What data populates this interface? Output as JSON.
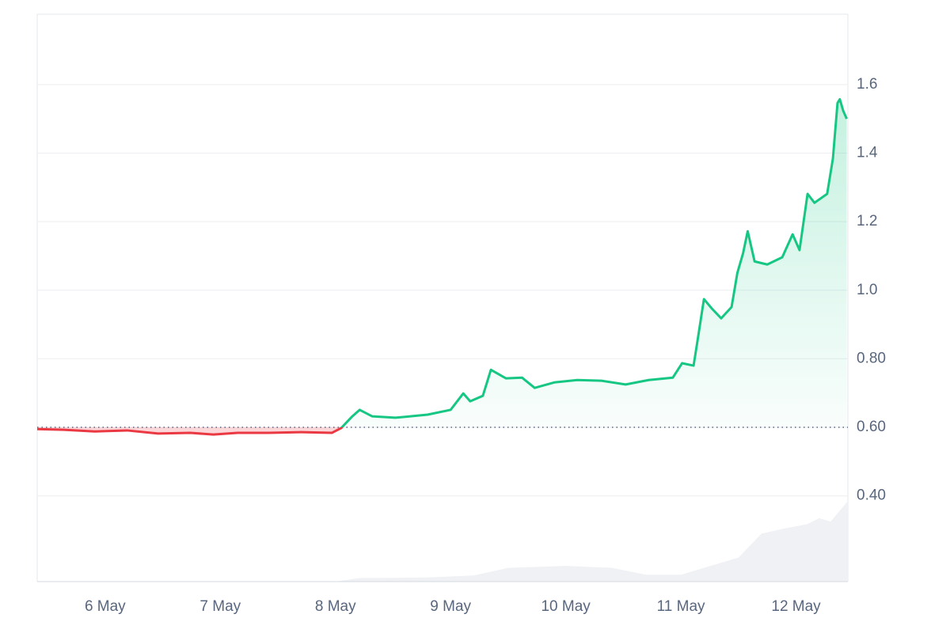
{
  "chart_data": {
    "type": "line",
    "x": [
      5.41,
      5.64,
      5.91,
      6.19,
      6.46,
      6.74,
      6.94,
      7.15,
      7.42,
      7.7,
      7.97,
      8.05,
      8.14,
      8.21,
      8.32,
      8.52,
      8.8,
      9.0,
      9.11,
      9.17,
      9.28,
      9.35,
      9.48,
      9.62,
      9.73,
      9.9,
      10.1,
      10.31,
      10.52,
      10.72,
      10.93,
      11.01,
      11.11,
      11.15,
      11.2,
      11.27,
      11.35,
      11.44,
      11.49,
      11.54,
      11.58,
      11.64,
      11.75,
      11.88,
      11.97,
      12.03,
      12.1,
      12.16,
      12.27,
      12.32,
      12.36,
      12.38,
      12.41,
      12.44
    ],
    "series": [
      {
        "color": "#16c784",
        "color_below": "#ea3943",
        "values": [
          0.595,
          0.593,
          0.588,
          0.591,
          0.582,
          0.584,
          0.579,
          0.584,
          0.584,
          0.586,
          0.584,
          0.598,
          0.63,
          0.651,
          0.632,
          0.628,
          0.637,
          0.651,
          0.699,
          0.676,
          0.692,
          0.768,
          0.743,
          0.745,
          0.715,
          0.731,
          0.738,
          0.736,
          0.725,
          0.738,
          0.745,
          0.787,
          0.78,
          0.865,
          0.974,
          0.946,
          0.918,
          0.951,
          1.05,
          1.108,
          1.172,
          1.084,
          1.075,
          1.096,
          1.163,
          1.117,
          1.281,
          1.255,
          1.281,
          1.384,
          1.546,
          1.557,
          1.523,
          1.5
        ]
      }
    ],
    "baseline": 0.6,
    "volume": {
      "color": "#eff1f4",
      "x": [
        5.41,
        7.0,
        8.0,
        8.2,
        8.8,
        9.2,
        9.5,
        10.0,
        10.4,
        10.7,
        11.0,
        11.2,
        11.5,
        11.7,
        11.9,
        12.1,
        12.2,
        12.3,
        12.45
      ],
      "values": [
        0.15,
        0.15,
        0.15,
        0.16,
        0.162,
        0.168,
        0.19,
        0.196,
        0.19,
        0.17,
        0.17,
        0.19,
        0.22,
        0.29,
        0.305,
        0.318,
        0.335,
        0.325,
        0.385
      ]
    },
    "xlim": [
      5.41,
      12.45
    ],
    "xticks": [
      {
        "value": 6,
        "label": "6 May"
      },
      {
        "value": 7,
        "label": "7 May"
      },
      {
        "value": 8,
        "label": "8 May"
      },
      {
        "value": 9,
        "label": "9 May"
      },
      {
        "value": 10,
        "label": "10 May"
      },
      {
        "value": 11,
        "label": "11 May"
      },
      {
        "value": 12,
        "label": "12 May"
      }
    ],
    "ylim": [
      0.15,
      1.805
    ],
    "yticks": [
      {
        "value": 0.4,
        "label": "0.40"
      },
      {
        "value": 0.6,
        "label": "0.60"
      },
      {
        "value": 0.8,
        "label": "0.80"
      },
      {
        "value": 1.0,
        "label": "1.0"
      },
      1.2,
      1.4,
      1.6
    ],
    "grid": true
  }
}
